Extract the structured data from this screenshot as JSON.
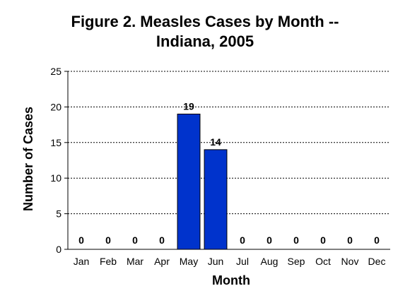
{
  "chart_data": {
    "type": "bar",
    "title_line1": "Figure 2. Measles Cases by Month --",
    "title_line2": "Indiana, 2005",
    "xlabel": "Month",
    "ylabel": "Number of Cases",
    "categories": [
      "Jan",
      "Feb",
      "Mar",
      "Apr",
      "May",
      "Jun",
      "Jul",
      "Aug",
      "Sep",
      "Oct",
      "Nov",
      "Dec"
    ],
    "values": [
      0,
      0,
      0,
      0,
      19,
      14,
      0,
      0,
      0,
      0,
      0,
      0
    ],
    "data_labels": [
      "0",
      "0",
      "0",
      "0",
      "19",
      "14",
      "0",
      "0",
      "0",
      "0",
      "0",
      "0"
    ],
    "ylim": [
      0,
      25
    ],
    "yticks": [
      0,
      5,
      10,
      15,
      20,
      25
    ],
    "grid": true,
    "bar_color": "#0033cc"
  }
}
